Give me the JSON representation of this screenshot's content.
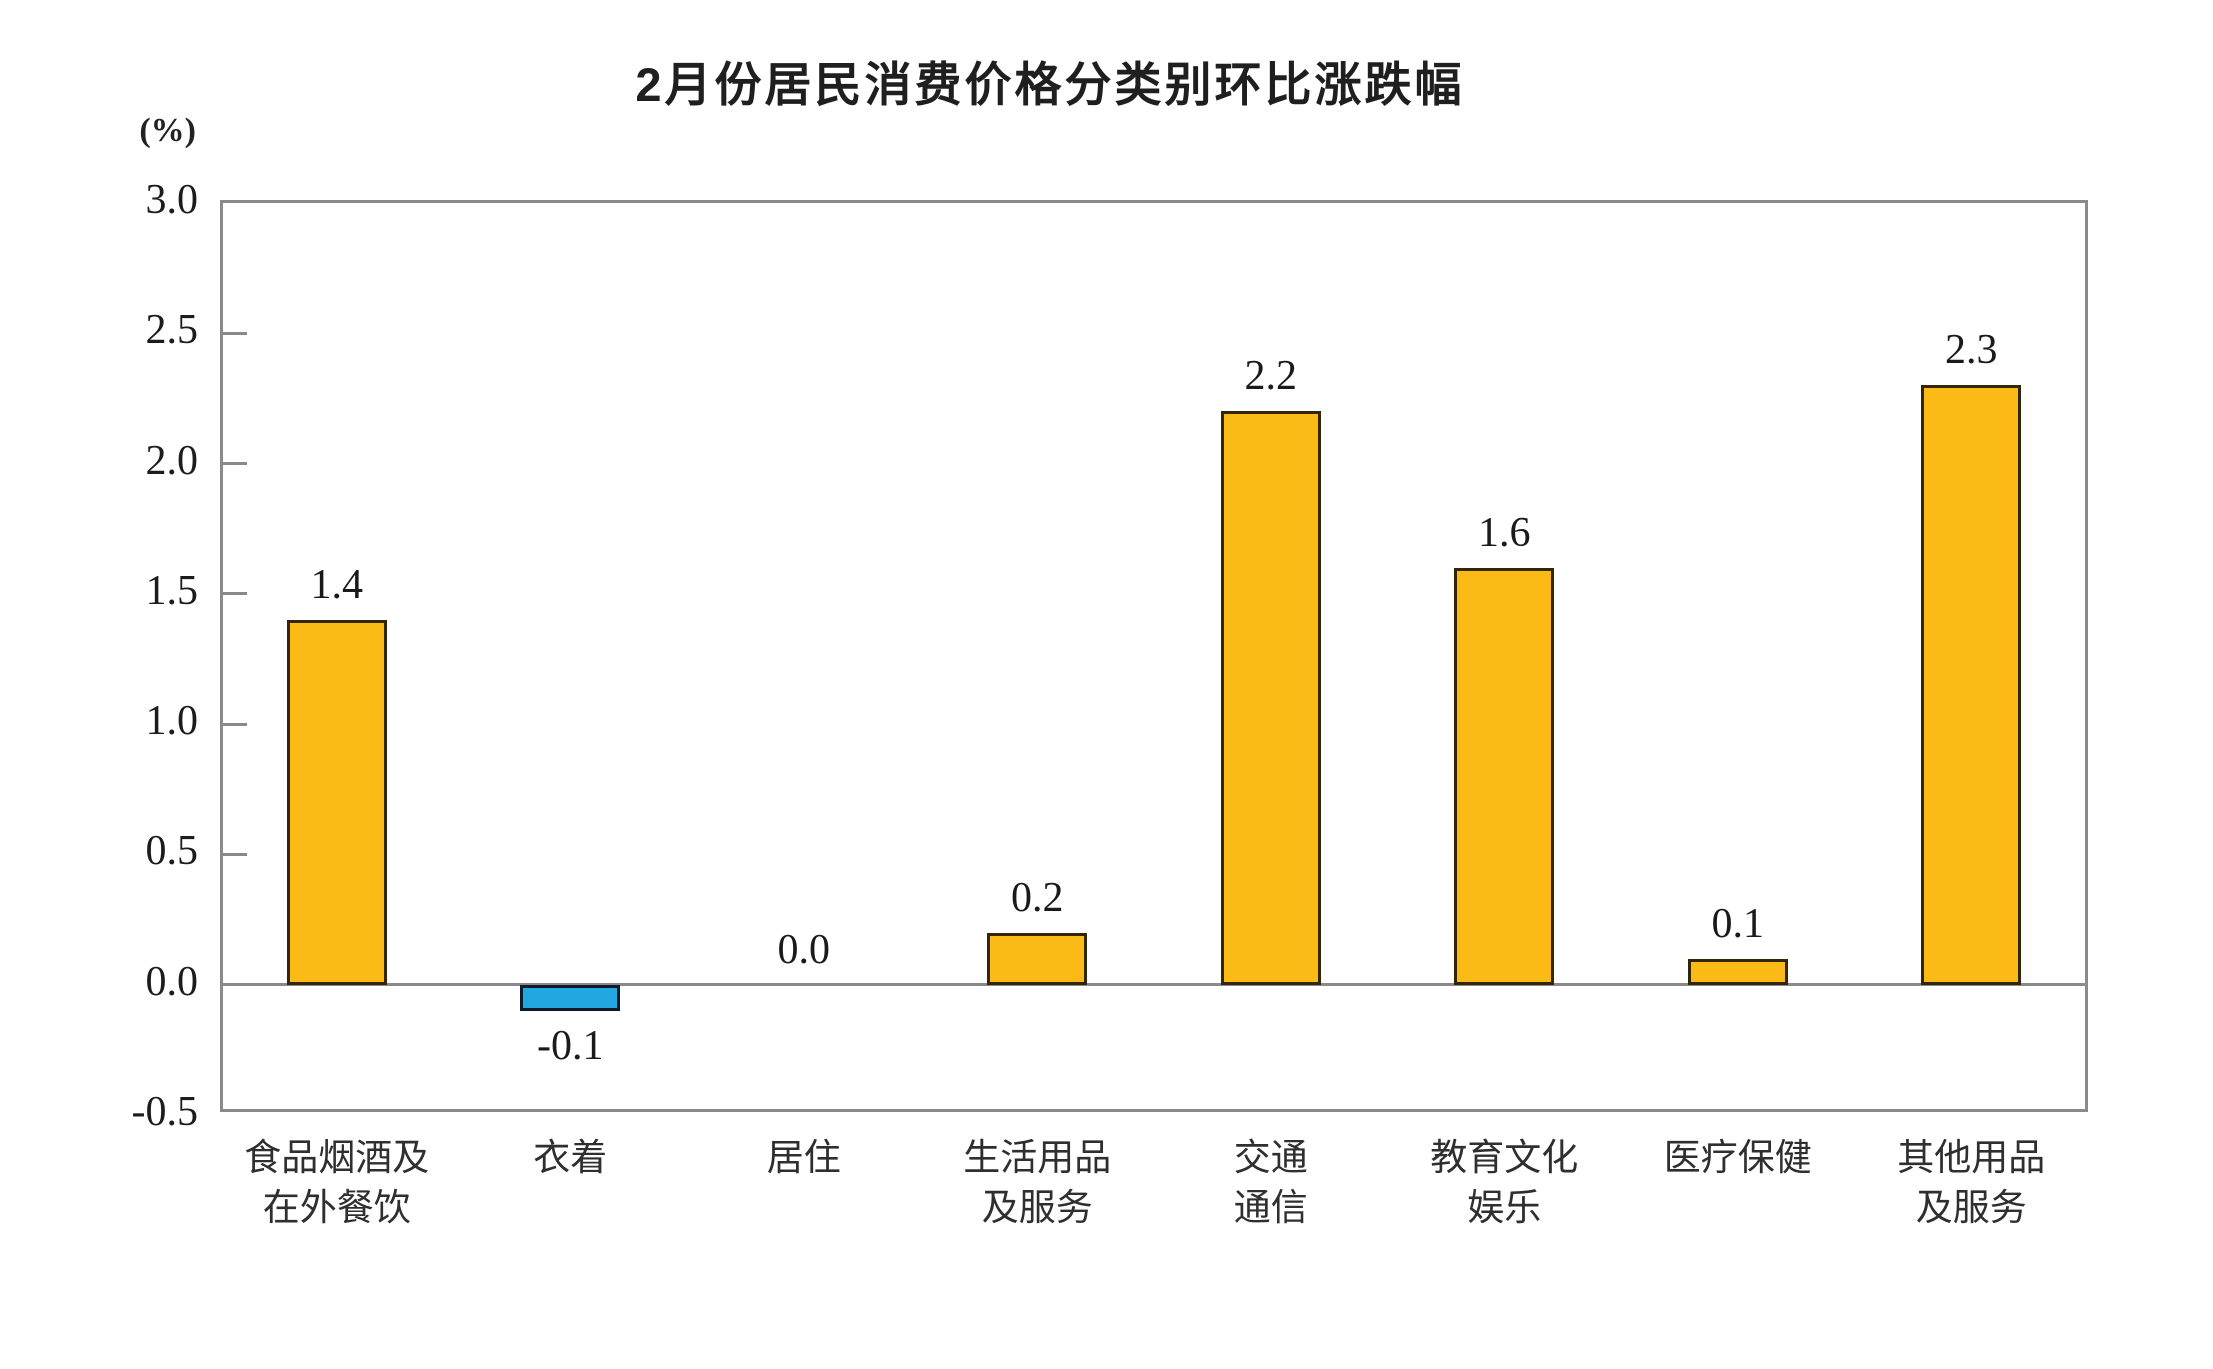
{
  "chart": {
    "title": "2月份居民消费价格分类别环比涨跌幅",
    "unit_label": "(%)"
  },
  "chart_data": {
    "type": "bar",
    "title": "2月份居民消费价格分类别环比涨跌幅",
    "ylabel": "(%)",
    "xlabel": "",
    "ylim": [
      -0.5,
      3.0
    ],
    "ytick_labels": [
      "3.0",
      "2.5",
      "2.0",
      "1.5",
      "1.0",
      "0.5",
      "0.0",
      "-0.5"
    ],
    "grid": false,
    "legend_position": "none",
    "categories": [
      [
        "食品烟酒及",
        "在外餐饮"
      ],
      [
        "衣着"
      ],
      [
        "居住"
      ],
      [
        "生活用品",
        "及服务"
      ],
      [
        "交通",
        "通信"
      ],
      [
        "教育文化",
        "娱乐"
      ],
      [
        "医疗保健"
      ],
      [
        "其他用品",
        "及服务"
      ]
    ],
    "values": [
      1.4,
      -0.1,
      0.0,
      0.2,
      2.2,
      1.6,
      0.1,
      2.3
    ],
    "value_labels": [
      "1.4",
      "-0.1",
      "0.0",
      "0.2",
      "2.2",
      "1.6",
      "0.1",
      "2.3"
    ],
    "colors": {
      "positive_fill": "#FBBA16",
      "positive_border": "#332607",
      "negative_fill": "#21A8E1",
      "negative_border": "#0c1b2a",
      "axis": "#8a8a8a",
      "text": "#1a1a1a"
    }
  }
}
